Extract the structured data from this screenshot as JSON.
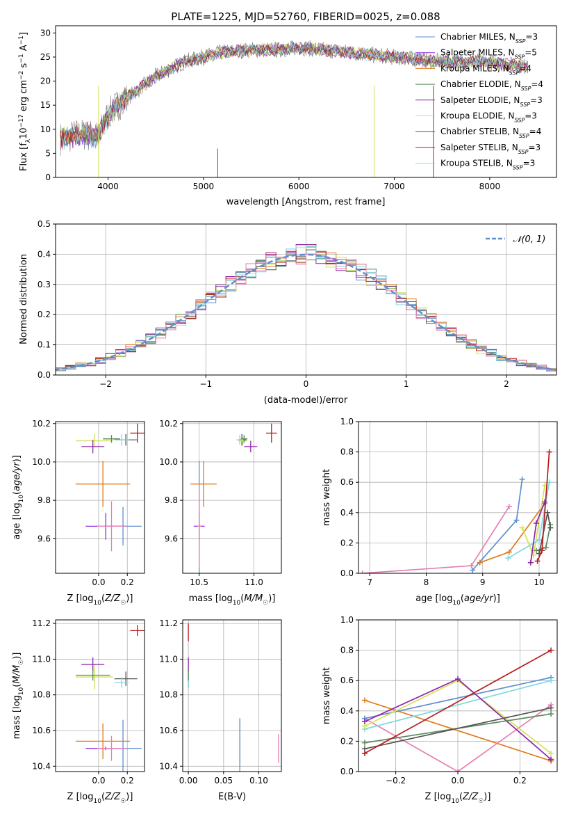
{
  "figure_title": "PLATE=1225, MJD=52760, FIBERID=0025, z=0.088",
  "colors": {
    "Chabrier MILES": "#5d8ed1",
    "Salpeter MILES": "#8a2be2",
    "Kroupa MILES": "#e07b1a",
    "Chabrier ELODIE": "#5a8a5a",
    "Salpeter ELODIE": "#8e24aa",
    "Kroupa ELODIE": "#d4e157",
    "Chabrier STELIB": "#555555",
    "Salpeter STELIB": "#b71c1c",
    "Kroupa STELIB": "#80d8e0",
    "pink": "#e67fb4"
  },
  "chart_data": [
    {
      "id": "spectrum",
      "type": "line",
      "xlabel": "wavelength [Angstrom, rest frame]",
      "ylabel": "Flux [f_λ 10^-17 erg cm^-2 s^-1 A^-1]",
      "xlim": [
        3450,
        8700
      ],
      "ylim": [
        0,
        31.5
      ],
      "xticks": [
        4000,
        5000,
        6000,
        7000,
        8000
      ],
      "yticks": [
        0,
        5,
        10,
        15,
        20,
        25,
        30
      ],
      "legend_position": "upper-right",
      "legend": [
        "Chabrier MILES, N_SSP=3",
        "Salpeter MILES, N_SSP=5",
        "Kroupa MILES, N_SSP=4",
        "Chabrier ELODIE, N_SSP=4",
        "Salpeter ELODIE, N_SSP=3",
        "Kroupa ELODIE, N_SSP=3",
        "Chabrier STELIB, N_SSP=4",
        "Salpeter STELIB, N_SSP=3",
        "Kroupa STELIB, N_SSP=3"
      ],
      "legend_colors": [
        "#5d8ed1",
        "#8a2be2",
        "#e07b1a",
        "#5a8a5a",
        "#8e24aa",
        "#d4e157",
        "#555555",
        "#b71c1c",
        "#80d8e0"
      ],
      "continuum": [
        [
          3500,
          8
        ],
        [
          3700,
          9
        ],
        [
          3900,
          8.5
        ],
        [
          4000,
          13
        ],
        [
          4100,
          15
        ],
        [
          4300,
          18
        ],
        [
          4500,
          21
        ],
        [
          4800,
          24
        ],
        [
          5000,
          25
        ],
        [
          5200,
          26
        ],
        [
          5500,
          26.5
        ],
        [
          5800,
          26.5
        ],
        [
          6000,
          27
        ],
        [
          6500,
          26
        ],
        [
          7000,
          25
        ],
        [
          7500,
          24
        ],
        [
          8000,
          24
        ],
        [
          8400,
          23
        ]
      ]
    },
    {
      "id": "residuals",
      "type": "histogram",
      "xlabel": "(data-model)/error",
      "ylabel": "Normed distribution",
      "xlim": [
        -2.5,
        2.5
      ],
      "ylim": [
        0,
        0.5
      ],
      "xticks": [
        -2,
        -1,
        0,
        1,
        2
      ],
      "yticks": [
        0.0,
        0.1,
        0.2,
        0.3,
        0.4,
        0.5
      ],
      "grid": true,
      "legend_position": "upper-right",
      "legend": [
        "𝒩(0, 1)"
      ],
      "reference_color": "#5d8ed1"
    },
    {
      "id": "age-vs-Z",
      "type": "scatter-errorbar",
      "xlabel": "Z [log10(Z/Z☉)]",
      "ylabel": "age [log10(age/yr)]",
      "xlim": [
        -0.3,
        0.32
      ],
      "ylim": [
        9.42,
        10.21
      ],
      "xticks": [
        0.0,
        0.2
      ],
      "yticks": [
        9.6,
        9.8,
        10.0,
        10.2
      ],
      "grid": true,
      "points": [
        {
          "x": 0.03,
          "y": 9.885,
          "xerr": 0.19,
          "yerr": 0.12,
          "c": "#e07b1a"
        },
        {
          "x": 0.17,
          "y": 9.665,
          "xerr": 0.13,
          "yerr": 0.1,
          "c": "#5d8ed1"
        },
        {
          "x": 0.05,
          "y": 9.665,
          "xerr": 0.14,
          "yerr": 0.07,
          "c": "#8a2be2"
        },
        {
          "x": 0.09,
          "y": 9.665,
          "xerr": 0.1,
          "yerr": 0.13,
          "c": "#e67fb4"
        },
        {
          "x": 0.27,
          "y": 10.15,
          "xerr": 0.05,
          "yerr": 0.05,
          "c": "#b71c1c"
        },
        {
          "x": 0.19,
          "y": 10.115,
          "xerr": 0.08,
          "yerr": 0.03,
          "c": "#555555"
        },
        {
          "x": 0.16,
          "y": 10.115,
          "xerr": 0.05,
          "yerr": 0.03,
          "c": "#80d8e0"
        },
        {
          "x": -0.03,
          "y": 10.11,
          "xerr": 0.13,
          "yerr": 0.035,
          "c": "#d4e157"
        },
        {
          "x": -0.04,
          "y": 10.08,
          "xerr": 0.08,
          "yerr": 0.035,
          "c": "#8e24aa"
        },
        {
          "x": 0.09,
          "y": 10.12,
          "xerr": 0.06,
          "yerr": 0.02,
          "c": "#5a8a5a"
        }
      ]
    },
    {
      "id": "age-vs-mass",
      "type": "scatter-errorbar",
      "xlabel": "mass [log10(M/M☉)]",
      "ylabel": "",
      "xlim": [
        10.35,
        11.25
      ],
      "ylim": [
        9.42,
        10.21
      ],
      "xticks": [
        10.5,
        11.0
      ],
      "yticks": [
        9.6,
        9.8,
        10.0,
        10.2
      ],
      "grid": true,
      "points": [
        {
          "x": 10.54,
          "y": 9.885,
          "xerr": 0.12,
          "yerr": 0.12,
          "c": "#e07b1a"
        },
        {
          "x": 10.5,
          "y": 9.665,
          "xerr": 0.04,
          "yerr": 0.34,
          "c": "#5d8ed1"
        },
        {
          "x": 10.5,
          "y": 9.665,
          "xerr": 0.05,
          "yerr": 0.07,
          "c": "#8a2be2"
        },
        {
          "x": 10.5,
          "y": 9.665,
          "xerr": 0.02,
          "yerr": 0.22,
          "c": "#e67fb4"
        },
        {
          "x": 11.16,
          "y": 10.15,
          "xerr": 0.05,
          "yerr": 0.05,
          "c": "#b71c1c"
        },
        {
          "x": 10.89,
          "y": 10.115,
          "xerr": 0.04,
          "yerr": 0.03,
          "c": "#555555"
        },
        {
          "x": 10.87,
          "y": 10.115,
          "xerr": 0.03,
          "yerr": 0.025,
          "c": "#80d8e0"
        },
        {
          "x": 10.9,
          "y": 10.11,
          "xerr": 0.04,
          "yerr": 0.02,
          "c": "#d4e157"
        },
        {
          "x": 10.97,
          "y": 10.08,
          "xerr": 0.06,
          "yerr": 0.03,
          "c": "#8e24aa"
        },
        {
          "x": 10.91,
          "y": 10.12,
          "xerr": 0.03,
          "yerr": 0.02,
          "c": "#5a8a5a"
        }
      ]
    },
    {
      "id": "weight-vs-age",
      "type": "line",
      "xlabel": "age [log10(age/yr)]",
      "ylabel": "mass weight",
      "xlim": [
        6.8,
        10.32
      ],
      "ylim": [
        0,
        1
      ],
      "xticks": [
        7,
        8,
        9,
        10
      ],
      "yticks": [
        0.0,
        0.2,
        0.4,
        0.6,
        0.8,
        1.0
      ],
      "grid": true,
      "series": [
        {
          "c": "#e67fb4",
          "x": [
            6.87,
            8.8,
            9.47
          ],
          "y": [
            0.0,
            0.05,
            0.44
          ]
        },
        {
          "c": "#5d8ed1",
          "x": [
            8.82,
            9.6,
            9.7
          ],
          "y": [
            0.02,
            0.35,
            0.62
          ]
        },
        {
          "c": "#e07b1a",
          "x": [
            8.95,
            9.47,
            10.1
          ],
          "y": [
            0.07,
            0.14,
            0.46
          ]
        },
        {
          "c": "#d4e157",
          "x": [
            9.7,
            9.9,
            10.1
          ],
          "y": [
            0.3,
            0.12,
            0.58
          ]
        },
        {
          "c": "#80d8e0",
          "x": [
            9.45,
            10.0,
            10.18
          ],
          "y": [
            0.1,
            0.22,
            0.6
          ]
        },
        {
          "c": "#8e24aa",
          "x": [
            9.85,
            9.95,
            10.1
          ],
          "y": [
            0.07,
            0.33,
            0.47
          ]
        },
        {
          "c": "#5a8a5a",
          "x": [
            9.95,
            10.12,
            10.2
          ],
          "y": [
            0.15,
            0.17,
            0.32
          ]
        },
        {
          "c": "#555555",
          "x": [
            10.0,
            10.15,
            10.2
          ],
          "y": [
            0.13,
            0.4,
            0.3
          ]
        },
        {
          "c": "#b71c1c",
          "x": [
            9.97,
            10.05,
            10.18
          ],
          "y": [
            0.08,
            0.15,
            0.8
          ]
        }
      ]
    },
    {
      "id": "mass-vs-Z",
      "type": "scatter-errorbar",
      "xlabel": "Z [log10(Z/Z☉)]",
      "ylabel": "mass [log10(M/M☉)]",
      "xlim": [
        -0.3,
        0.32
      ],
      "ylim": [
        10.37,
        11.22
      ],
      "xticks": [
        0.0,
        0.2
      ],
      "yticks": [
        10.4,
        10.6,
        10.8,
        11.0,
        11.2
      ],
      "grid": true,
      "points": [
        {
          "x": 0.03,
          "y": 10.54,
          "xerr": 0.19,
          "yerr": 0.1,
          "c": "#e07b1a"
        },
        {
          "x": 0.17,
          "y": 10.5,
          "xerr": 0.13,
          "yerr": 0.16,
          "c": "#5d8ed1"
        },
        {
          "x": 0.05,
          "y": 10.5,
          "xerr": 0.14,
          "yerr": 0.01,
          "c": "#8a2be2"
        },
        {
          "x": 0.09,
          "y": 10.5,
          "xerr": 0.1,
          "yerr": 0.07,
          "c": "#e67fb4"
        },
        {
          "x": 0.27,
          "y": 11.16,
          "xerr": 0.05,
          "yerr": 0.03,
          "c": "#b71c1c"
        },
        {
          "x": 0.19,
          "y": 10.89,
          "xerr": 0.08,
          "yerr": 0.04,
          "c": "#555555"
        },
        {
          "x": 0.16,
          "y": 10.87,
          "xerr": 0.05,
          "yerr": 0.03,
          "c": "#80d8e0"
        },
        {
          "x": -0.03,
          "y": 10.9,
          "xerr": 0.13,
          "yerr": 0.07,
          "c": "#d4e157"
        },
        {
          "x": -0.04,
          "y": 10.97,
          "xerr": 0.08,
          "yerr": 0.04,
          "c": "#8e24aa"
        },
        {
          "x": -0.04,
          "y": 10.91,
          "xerr": 0.12,
          "yerr": 0.03,
          "c": "#5a8a5a"
        }
      ]
    },
    {
      "id": "mass-vs-EBV",
      "type": "scatter-errorbar",
      "xlabel": "E(B-V)",
      "ylabel": "",
      "xlim": [
        -0.008,
        0.132
      ],
      "ylim": [
        10.37,
        11.22
      ],
      "xticks": [
        0.0,
        0.05,
        0.1
      ],
      "yticks": [
        10.4,
        10.6,
        10.8,
        11.0,
        11.2
      ],
      "grid": true,
      "points": [
        {
          "x": 0.0,
          "y": 11.15,
          "xerr": 0,
          "yerr": 0.05,
          "c": "#b71c1c"
        },
        {
          "x": 0.0,
          "y": 10.97,
          "xerr": 0,
          "yerr": 0.04,
          "c": "#8e24aa"
        },
        {
          "x": 0.0,
          "y": 10.89,
          "xerr": 0,
          "yerr": 0.05,
          "c": "#555555"
        },
        {
          "x": 0.0,
          "y": 10.87,
          "xerr": 0,
          "yerr": 0.03,
          "c": "#80d8e0"
        },
        {
          "x": 0.0,
          "y": 10.91,
          "xerr": 0,
          "yerr": 0.03,
          "c": "#5a8a5a"
        },
        {
          "x": 0.073,
          "y": 10.54,
          "xerr": 0,
          "yerr": 0.13,
          "c": "#e07b1a"
        },
        {
          "x": 0.073,
          "y": 10.5,
          "xerr": 0,
          "yerr": 0.16,
          "c": "#5d8ed1"
        },
        {
          "x": 0.128,
          "y": 10.5,
          "xerr": 0,
          "yerr": 0.08,
          "c": "#e67fb4"
        }
      ]
    },
    {
      "id": "weight-vs-Z",
      "type": "line",
      "xlabel": "Z [log10(Z/Z☉)]",
      "ylabel": "mass weight",
      "xlim": [
        -0.32,
        0.32
      ],
      "ylim": [
        0,
        1
      ],
      "xticks": [
        -0.2,
        0.0,
        0.2
      ],
      "yticks": [
        0.0,
        0.2,
        0.4,
        0.6,
        0.8,
        1.0
      ],
      "grid": true,
      "series": [
        {
          "c": "#e07b1a",
          "x": [
            -0.3,
            0.3
          ],
          "y": [
            0.47,
            0.07
          ]
        },
        {
          "c": "#e67fb4",
          "x": [
            -0.3,
            0.0,
            0.3
          ],
          "y": [
            0.35,
            0.0,
            0.44
          ]
        },
        {
          "c": "#5d8ed1",
          "x": [
            -0.3,
            0.3
          ],
          "y": [
            0.35,
            0.62
          ]
        },
        {
          "c": "#80d8e0",
          "x": [
            -0.3,
            0.3
          ],
          "y": [
            0.28,
            0.6
          ]
        },
        {
          "c": "#d4e157",
          "x": [
            -0.3,
            0.0,
            0.3
          ],
          "y": [
            0.3,
            0.6,
            0.12
          ]
        },
        {
          "c": "#8e24aa",
          "x": [
            -0.3,
            0.0,
            0.3
          ],
          "y": [
            0.33,
            0.61,
            0.08
          ]
        },
        {
          "c": "#5a8a5a",
          "x": [
            -0.3,
            0.3
          ],
          "y": [
            0.19,
            0.38
          ]
        },
        {
          "c": "#555555",
          "x": [
            -0.3,
            0.3
          ],
          "y": [
            0.15,
            0.42
          ]
        },
        {
          "c": "#b71c1c",
          "x": [
            -0.3,
            0.3
          ],
          "y": [
            0.12,
            0.8
          ]
        }
      ]
    }
  ]
}
